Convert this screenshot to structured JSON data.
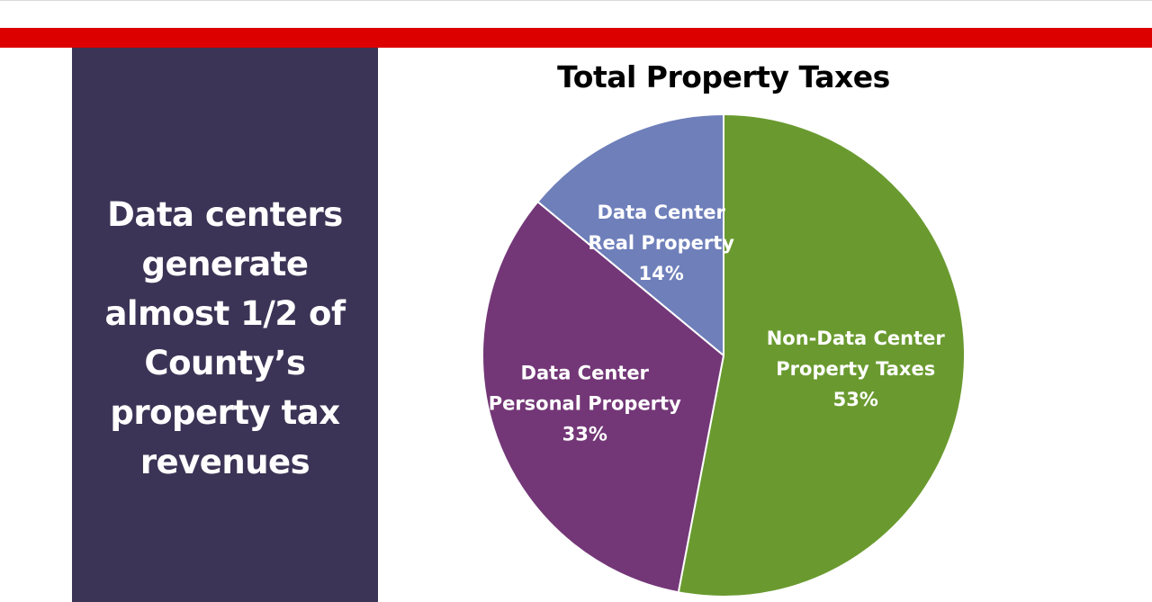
{
  "colors": {
    "band": "#dc0000",
    "panel": "#3c3456",
    "slice_green": "#6a9a2f",
    "slice_purple": "#733777",
    "slice_blue": "#6e7fba"
  },
  "side_panel": {
    "text": "Data centers generate almost 1/2 of County’s property tax revenues"
  },
  "chart_data": {
    "type": "pie",
    "title": "Total Property Taxes",
    "slices": [
      {
        "label": "Non-Data Center Property Taxes",
        "value": 53,
        "value_label": "53%",
        "color": "#6a9a2f"
      },
      {
        "label": "Data Center Personal Property",
        "value": 33,
        "value_label": "33%",
        "color": "#733777"
      },
      {
        "label": "Data Center Real Property",
        "value": 14,
        "value_label": "14%",
        "color": "#6e7fba"
      }
    ],
    "start": "top",
    "direction": "clockwise",
    "legend": "none"
  }
}
